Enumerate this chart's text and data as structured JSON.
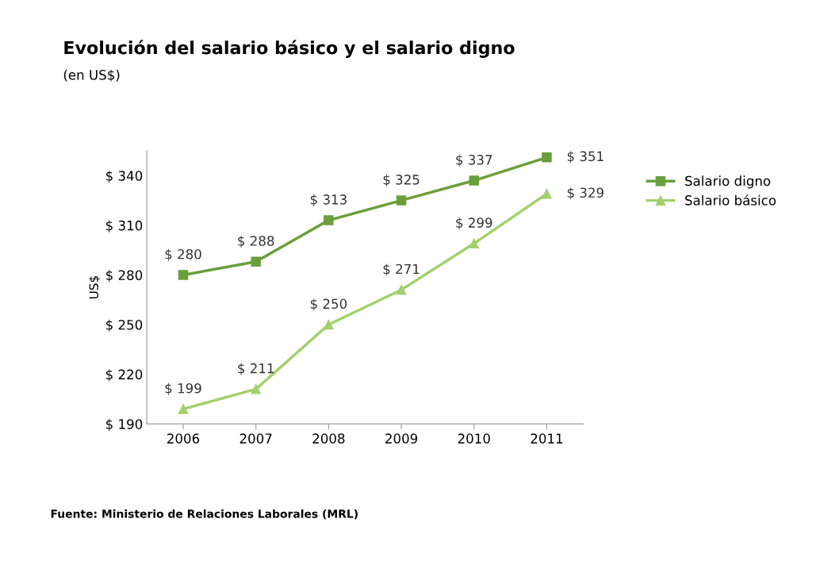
{
  "chart_data": {
    "type": "line",
    "title": "Evolución del salario básico y el salario digno",
    "subtitle": "(en US$)",
    "ylabel": "US$",
    "categories": [
      "2006",
      "2007",
      "2008",
      "2009",
      "2010",
      "2011"
    ],
    "series": [
      {
        "name": "Salario digno",
        "color": "#6b9e3c",
        "marker": "square",
        "values": [
          280,
          288,
          313,
          325,
          337,
          351
        ],
        "value_labels": [
          "$ 280",
          "$ 288",
          "$ 313",
          "$ 325",
          "$ 337",
          "$ 351"
        ]
      },
      {
        "name": "Salario básico",
        "color": "#a3d06e",
        "marker": "triangle",
        "values": [
          199,
          211,
          250,
          271,
          299,
          329
        ],
        "value_labels": [
          "$ 199",
          "$ 211",
          "$ 250",
          "$ 271",
          "$ 299",
          "$ 329"
        ]
      }
    ],
    "ylim": [
      190,
      355
    ],
    "yticks": [
      {
        "value": 190,
        "label": "$ 190"
      },
      {
        "value": 220,
        "label": "$ 220"
      },
      {
        "value": 250,
        "label": "$ 250"
      },
      {
        "value": 280,
        "label": "$ 280"
      },
      {
        "value": 310,
        "label": "$ 310"
      },
      {
        "value": 340,
        "label": "$ 340"
      }
    ],
    "grid": false,
    "legend": "right",
    "line_style": "solid",
    "annotations": [
      "Fuente: Ministerio de Relaciones Laborales (MRL)"
    ]
  }
}
